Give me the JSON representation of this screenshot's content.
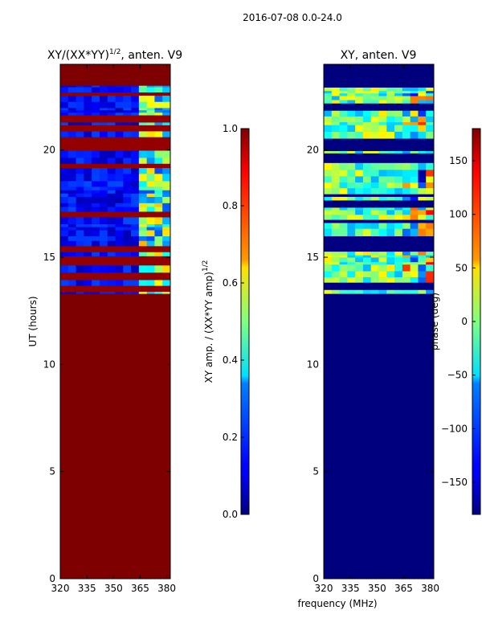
{
  "suptitle": "2016-07-08 0.0-24.0",
  "colors": {
    "background_fill": "#7f0000",
    "jet_low": "#00007f",
    "jet_high": "#7f0000"
  },
  "chart_data": [
    {
      "type": "heatmap",
      "title_main": "XY/(XX*YY)",
      "title_sup": "1/2",
      "title_rest": ", anten. V9",
      "xlabel": "",
      "ylabel": "UT (hours)",
      "xlim": [
        320,
        382
      ],
      "ylim": [
        0,
        24
      ],
      "xticks": [
        "320",
        "335",
        "350",
        "365",
        "380"
      ],
      "yticks": [
        "0",
        "5",
        "10",
        "15",
        "20"
      ],
      "data_range_hours": [
        13.3,
        23.0
      ],
      "fill_outside_value": 1.0,
      "colorbar": {
        "label_main": "XY amp. / (XX*YY amp)",
        "label_sup": "1/2",
        "range": [
          0.0,
          1.0
        ],
        "ticks": [
          "0.0",
          "0.2",
          "0.4",
          "0.6",
          "0.8",
          "1.0"
        ],
        "colormap": "jet"
      }
    },
    {
      "type": "heatmap",
      "title_main": "XY, anten. V9",
      "xlabel": "frequency (MHz)",
      "ylabel": "",
      "xlim": [
        320,
        382
      ],
      "ylim": [
        0,
        24
      ],
      "xticks": [
        "320",
        "335",
        "350",
        "365",
        "380"
      ],
      "yticks": [
        "0",
        "5",
        "10",
        "15",
        "20"
      ],
      "data_range_hours": [
        13.3,
        23.0
      ],
      "fill_outside_value": -180,
      "colorbar": {
        "label_main": "phase (deg)",
        "range": [
          -180,
          180
        ],
        "ticks": [
          "-150",
          "-100",
          "-50",
          "0",
          "50",
          "100",
          "150"
        ],
        "colormap": "jet"
      }
    }
  ]
}
